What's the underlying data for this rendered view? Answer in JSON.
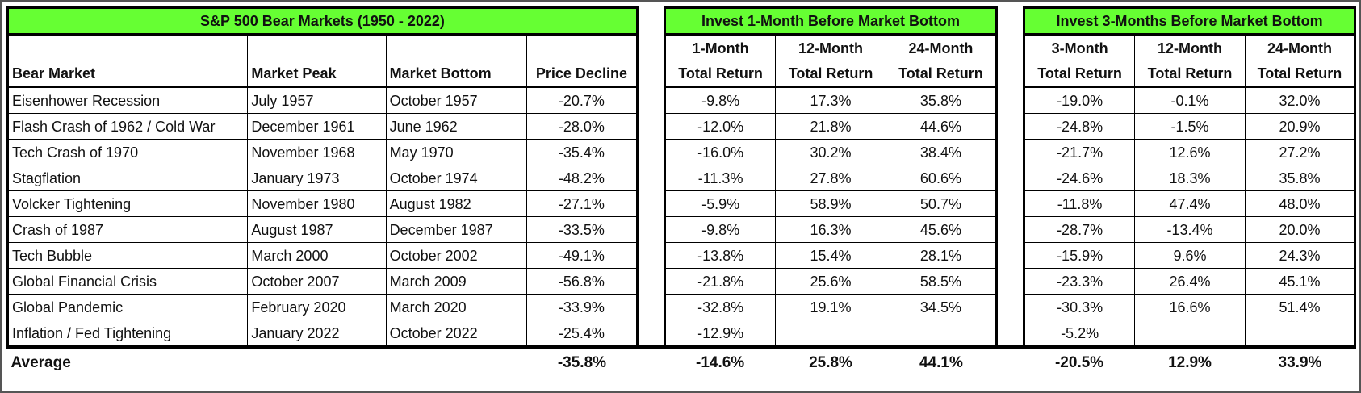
{
  "chart_data": {
    "type": "table",
    "title": "S&P 500 Bear Markets (1950 - 2022)",
    "group_headers": {
      "one_month": "Invest 1-Month Before Market Bottom",
      "three_month": "Invest 3-Months Before Market Bottom"
    },
    "columns": [
      {
        "line1": "",
        "line2": "Bear Market"
      },
      {
        "line1": "",
        "line2": "Market Peak"
      },
      {
        "line1": "",
        "line2": "Market Bottom"
      },
      {
        "line1": "",
        "line2": "Price Decline"
      },
      {
        "line1": "1-Month",
        "line2": "Total Return"
      },
      {
        "line1": "12-Month",
        "line2": "Total Return"
      },
      {
        "line1": "24-Month",
        "line2": "Total Return"
      },
      {
        "line1": "3-Month",
        "line2": "Total Return"
      },
      {
        "line1": "12-Month",
        "line2": "Total Return"
      },
      {
        "line1": "24-Month",
        "line2": "Total Return"
      }
    ],
    "rows": [
      {
        "name": "Eisenhower Recession",
        "peak": "July 1957",
        "bottom": "October 1957",
        "decline": "-20.7%",
        "m1_1": "-9.8%",
        "m1_12": "17.3%",
        "m1_24": "35.8%",
        "m3_3": "-19.0%",
        "m3_12": "-0.1%",
        "m3_24": "32.0%"
      },
      {
        "name": "Flash Crash of 1962 / Cold War",
        "peak": "December 1961",
        "bottom": "June 1962",
        "decline": "-28.0%",
        "m1_1": "-12.0%",
        "m1_12": "21.8%",
        "m1_24": "44.6%",
        "m3_3": "-24.8%",
        "m3_12": "-1.5%",
        "m3_24": "20.9%"
      },
      {
        "name": "Tech Crash of 1970",
        "peak": "November 1968",
        "bottom": "May 1970",
        "decline": "-35.4%",
        "m1_1": "-16.0%",
        "m1_12": "30.2%",
        "m1_24": "38.4%",
        "m3_3": "-21.7%",
        "m3_12": "12.6%",
        "m3_24": "27.2%"
      },
      {
        "name": "Stagflation",
        "peak": "January 1973",
        "bottom": "October 1974",
        "decline": "-48.2%",
        "m1_1": "-11.3%",
        "m1_12": "27.8%",
        "m1_24": "60.6%",
        "m3_3": "-24.6%",
        "m3_12": "18.3%",
        "m3_24": "35.8%"
      },
      {
        "name": "Volcker Tightening",
        "peak": "November 1980",
        "bottom": "August 1982",
        "decline": "-27.1%",
        "m1_1": "-5.9%",
        "m1_12": "58.9%",
        "m1_24": "50.7%",
        "m3_3": "-11.8%",
        "m3_12": "47.4%",
        "m3_24": "48.0%"
      },
      {
        "name": "Crash of 1987",
        "peak": "August 1987",
        "bottom": "December 1987",
        "decline": "-33.5%",
        "m1_1": "-9.8%",
        "m1_12": "16.3%",
        "m1_24": "45.6%",
        "m3_3": "-28.7%",
        "m3_12": "-13.4%",
        "m3_24": "20.0%"
      },
      {
        "name": "Tech Bubble",
        "peak": "March 2000",
        "bottom": "October 2002",
        "decline": "-49.1%",
        "m1_1": "-13.8%",
        "m1_12": "15.4%",
        "m1_24": "28.1%",
        "m3_3": "-15.9%",
        "m3_12": "9.6%",
        "m3_24": "24.3%"
      },
      {
        "name": "Global Financial Crisis",
        "peak": "October 2007",
        "bottom": "March 2009",
        "decline": "-56.8%",
        "m1_1": "-21.8%",
        "m1_12": "25.6%",
        "m1_24": "58.5%",
        "m3_3": "-23.3%",
        "m3_12": "26.4%",
        "m3_24": "45.1%"
      },
      {
        "name": "Global Pandemic",
        "peak": "February 2020",
        "bottom": "March 2020",
        "decline": "-33.9%",
        "m1_1": "-32.8%",
        "m1_12": "19.1%",
        "m1_24": "34.5%",
        "m3_3": "-30.3%",
        "m3_12": "16.6%",
        "m3_24": "51.4%"
      },
      {
        "name": "Inflation / Fed Tightening",
        "peak": "January 2022",
        "bottom": "October 2022",
        "decline": "-25.4%",
        "m1_1": "-12.9%",
        "m1_12": "",
        "m1_24": "",
        "m3_3": "-5.2%",
        "m3_12": "",
        "m3_24": ""
      }
    ],
    "average": {
      "label": "Average",
      "decline": "-35.8%",
      "m1_1": "-14.6%",
      "m1_12": "25.8%",
      "m1_24": "44.1%",
      "m3_3": "-20.5%",
      "m3_12": "12.9%",
      "m3_24": "33.9%"
    },
    "colors": {
      "header_fill": "#66ff33",
      "negative": "#e11b1b",
      "positive": "#111111"
    }
  }
}
